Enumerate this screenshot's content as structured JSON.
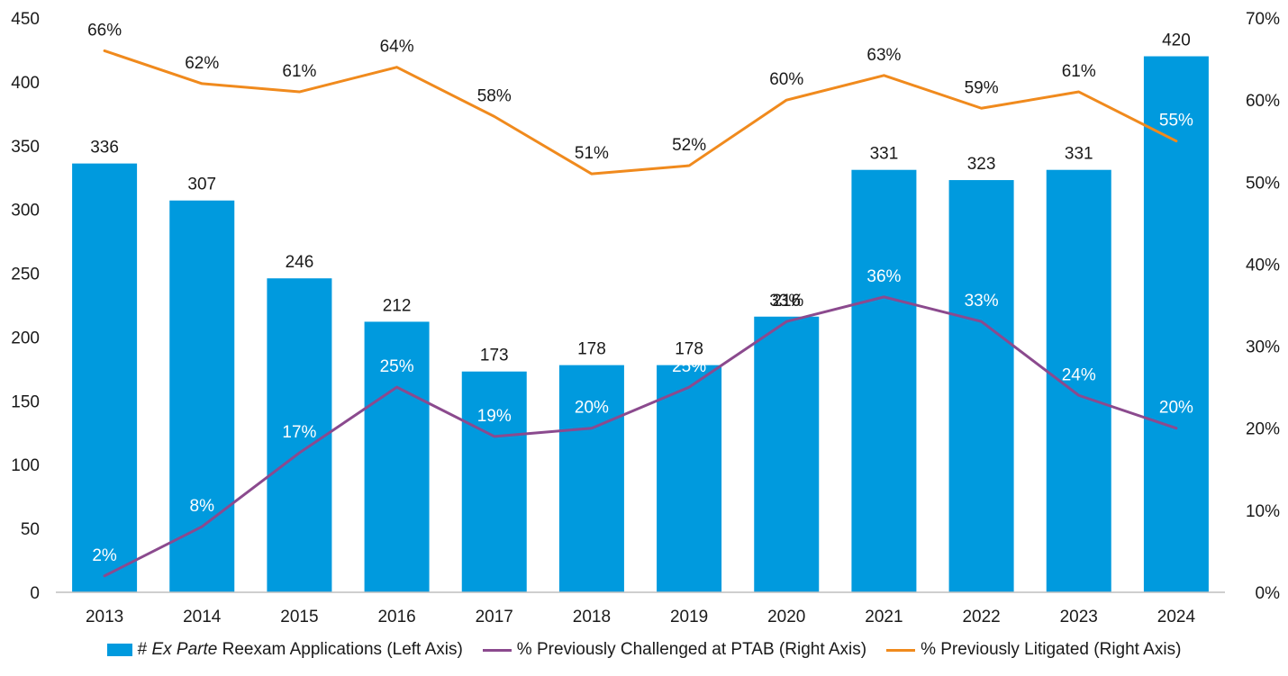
{
  "chart_data": {
    "type": "bar",
    "categories": [
      "2013",
      "2014",
      "2015",
      "2016",
      "2017",
      "2018",
      "2019",
      "2020",
      "2021",
      "2022",
      "2023",
      "2024"
    ],
    "bars": {
      "name": "# Ex Parte Reexam Applications (Left Axis)",
      "values": [
        336,
        307,
        246,
        212,
        173,
        178,
        178,
        216,
        331,
        323,
        331,
        420
      ],
      "color": "#009ADE"
    },
    "lines": [
      {
        "name": "% Previously Challenged at PTAB (Right Axis)",
        "values": [
          2,
          8,
          17,
          25,
          19,
          20,
          25,
          33,
          36,
          33,
          24,
          20
        ],
        "color": "#8B4A8E"
      },
      {
        "name": "% Previously Litigated (Right Axis)",
        "values": [
          66,
          62,
          61,
          64,
          58,
          51,
          52,
          60,
          63,
          59,
          61,
          55
        ],
        "color": "#F08A1D"
      }
    ],
    "left_axis": {
      "ticks": [
        0,
        50,
        100,
        150,
        200,
        250,
        300,
        350,
        400,
        450
      ],
      "ylim": [
        0,
        450
      ]
    },
    "right_axis": {
      "ticks": [
        "0%",
        "10%",
        "20%",
        "30%",
        "40%",
        "50%",
        "60%",
        "70%"
      ],
      "ylim": [
        0,
        70
      ]
    },
    "grid": false,
    "legend_position": "bottom",
    "legend": {
      "bar_prefix": "# ",
      "bar_italic": "Ex Parte",
      "bar_suffix": " Reexam Applications (Left Axis)",
      "line1": "% Previously Challenged at PTAB (Right Axis)",
      "line2": "% Previously Litigated (Right Axis)"
    }
  }
}
